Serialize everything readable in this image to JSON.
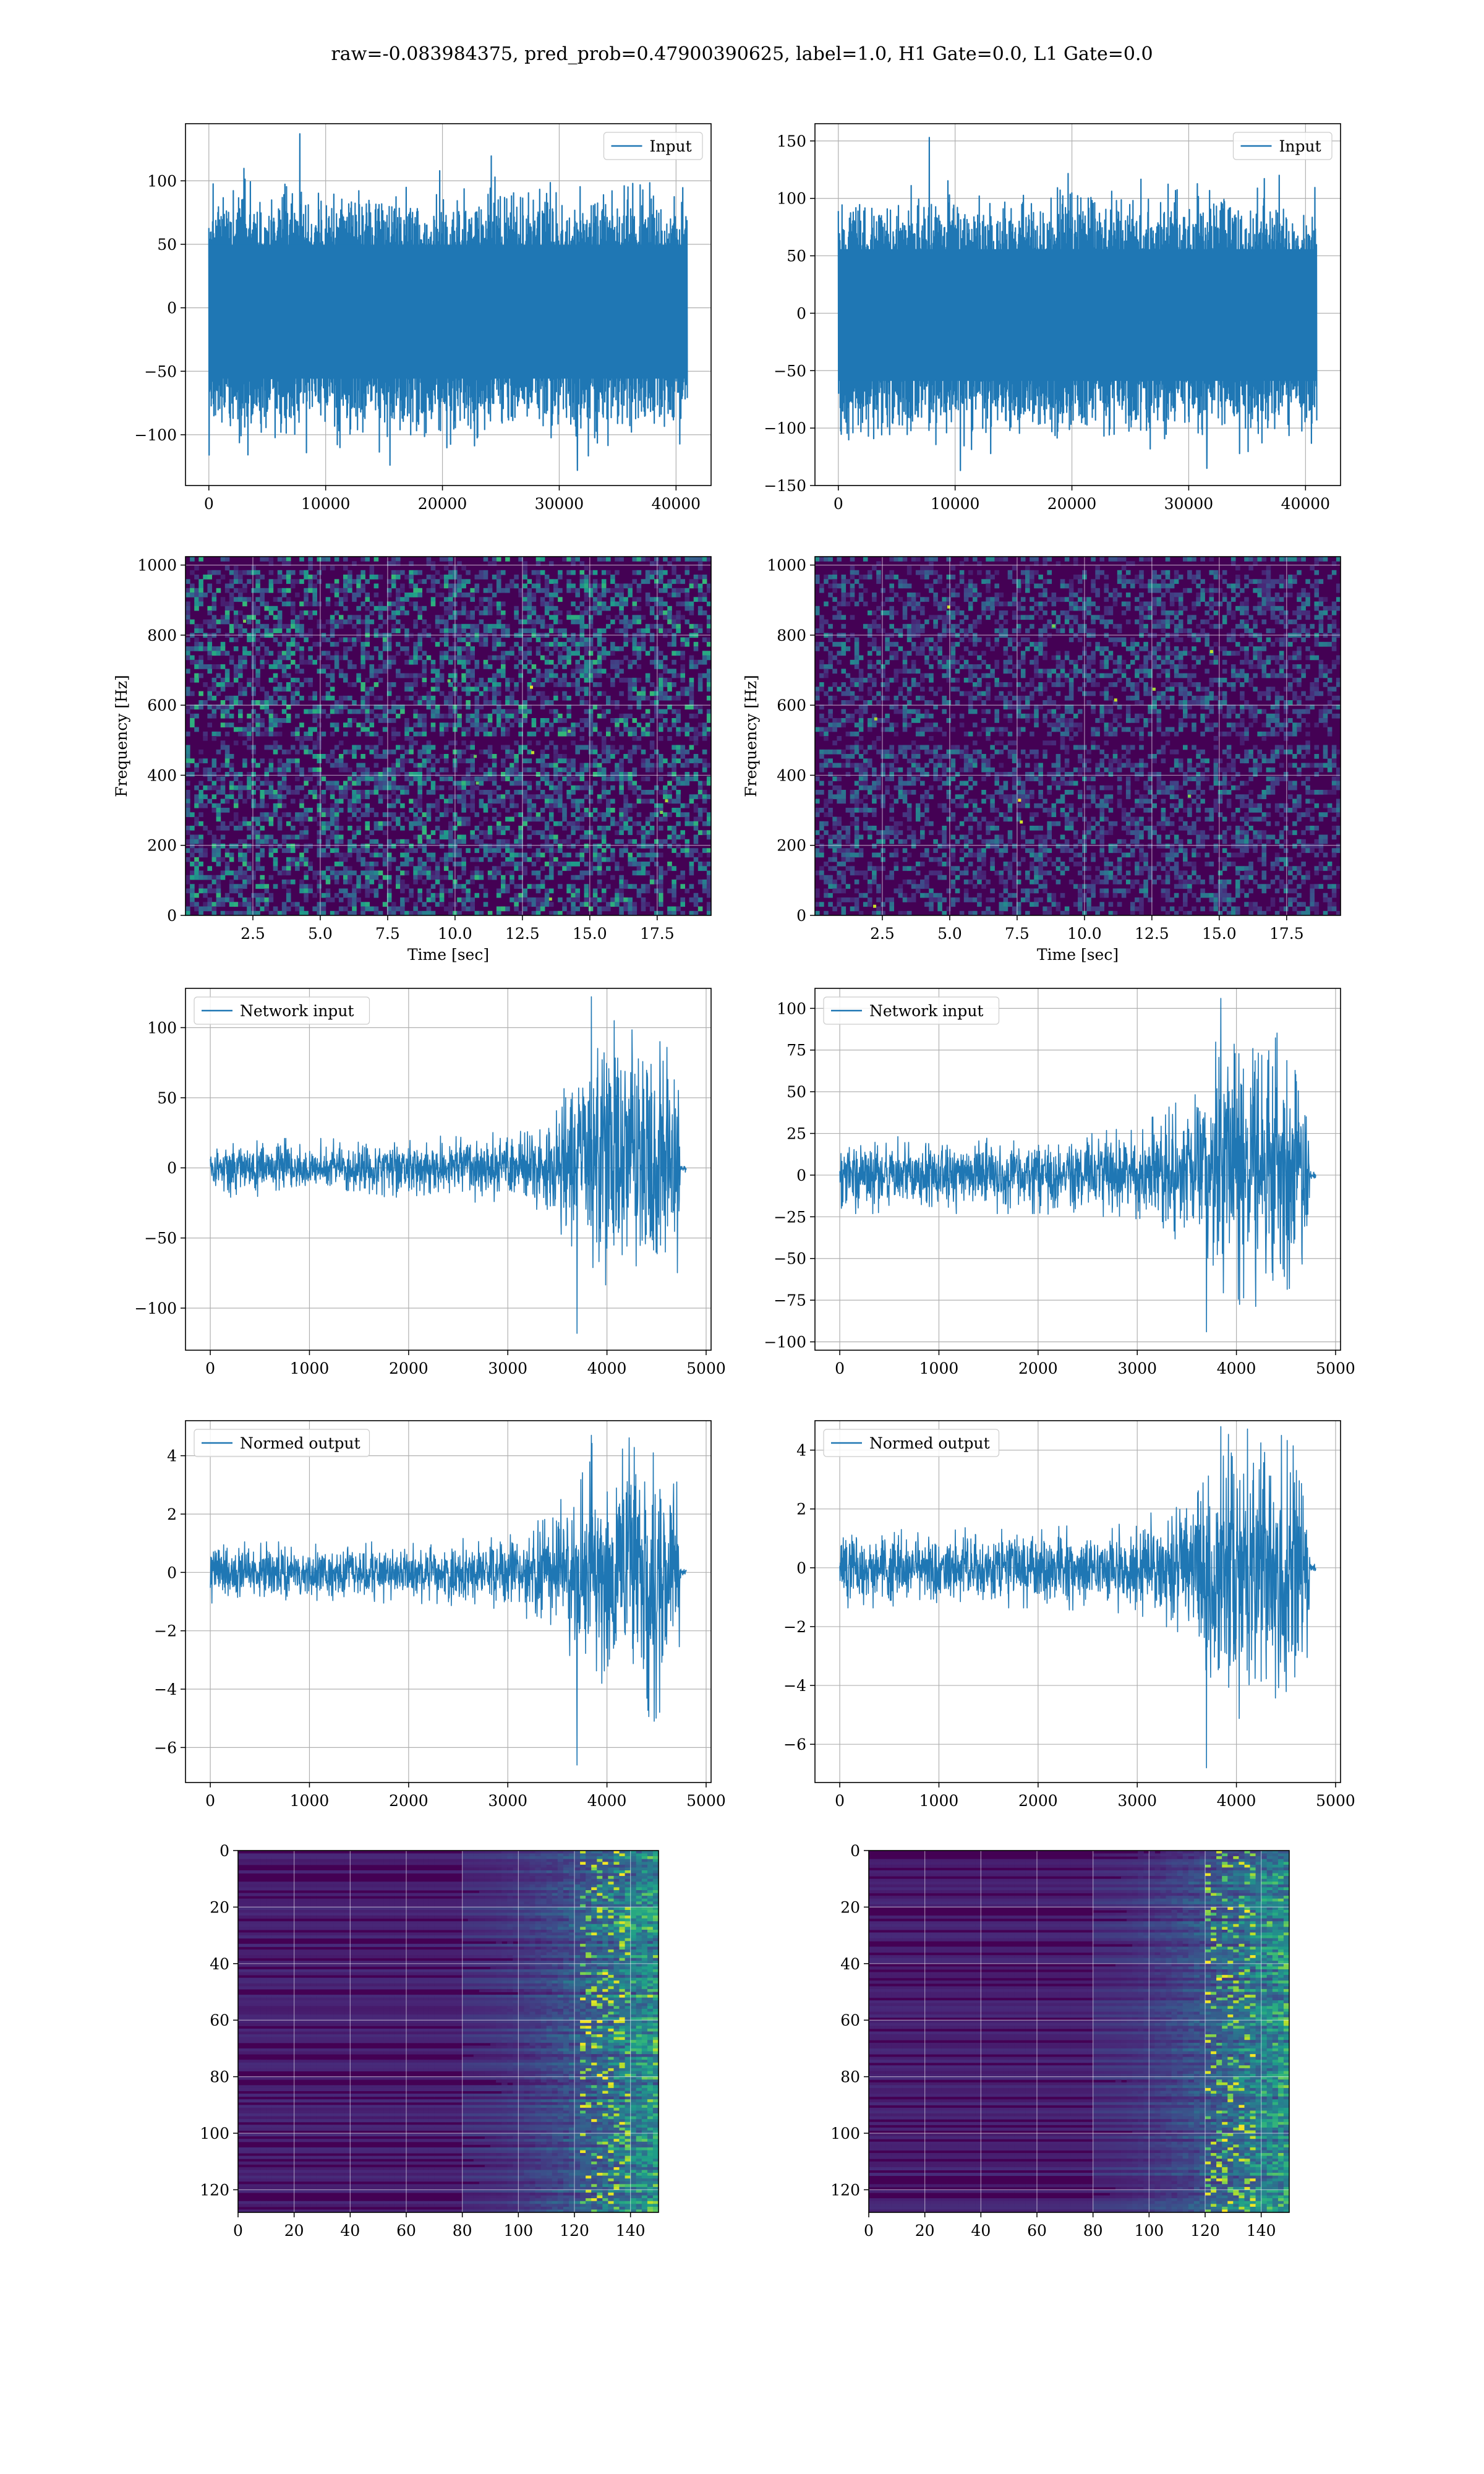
{
  "figure": {
    "suptitle": "raw=-0.083984375, pred_prob=0.47900390625, label=1.0, H1 Gate=0.0, L1 Gate=0.0"
  },
  "colors": {
    "line": "#1f77b4",
    "grid": "#b0b0b0",
    "viridis_dark": "#440154",
    "viridis_mid": "#21918c",
    "viridis_bright": "#fde725"
  },
  "chart_data": [
    {
      "id": "input-h1",
      "type": "line",
      "style": "dense-noise",
      "legend": "Input",
      "legend_loc": "top-right",
      "grid": true,
      "xlim": [
        -2000,
        43000
      ],
      "ylim": [
        -140,
        145
      ],
      "xticks": [
        0,
        10000,
        20000,
        30000,
        40000
      ],
      "yticks": [
        -100,
        -50,
        0,
        50,
        100
      ],
      "series": [
        {
          "name": "Input",
          "x_range": [
            0,
            40960
          ],
          "envelope": [
            [
              0,
              -90,
              80
            ],
            [
              40960,
              -90,
              80
            ]
          ],
          "extremes": [
            -128,
            137
          ]
        }
      ]
    },
    {
      "id": "input-l1",
      "type": "line",
      "style": "dense-noise",
      "legend": "Input",
      "legend_loc": "top-right",
      "grid": true,
      "xlim": [
        -2000,
        43000
      ],
      "ylim": [
        -150,
        165
      ],
      "xticks": [
        0,
        10000,
        20000,
        30000,
        40000
      ],
      "yticks": [
        -150,
        -100,
        -50,
        0,
        50,
        100,
        150
      ],
      "series": [
        {
          "name": "Input",
          "x_range": [
            0,
            40960
          ],
          "envelope": [
            [
              0,
              -95,
              90
            ],
            [
              40960,
              -95,
              90
            ]
          ],
          "extremes": [
            -135,
            153
          ]
        }
      ]
    },
    {
      "id": "spec-h1",
      "type": "heatmap",
      "style": "spectrogram",
      "xlabel": "Time [sec]",
      "ylabel": "Frequency [Hz]",
      "grid": true,
      "xlim": [
        0.0,
        19.5
      ],
      "ylim": [
        0,
        1024
      ],
      "xticks": [
        2.5,
        5.0,
        7.5,
        10.0,
        12.5,
        15.0,
        17.5
      ],
      "yticks": [
        0,
        200,
        400,
        600,
        800,
        1000
      ],
      "xtick_labels": [
        "2.5",
        "5.0",
        "7.5",
        "10.0",
        "12.5",
        "15.0",
        "17.5"
      ],
      "intensity": 0.42,
      "dark_bands_hz": [
        500,
        1000
      ]
    },
    {
      "id": "spec-l1",
      "type": "heatmap",
      "style": "spectrogram",
      "xlabel": "Time [sec]",
      "ylabel": "Frequency [Hz]",
      "grid": true,
      "xlim": [
        0.0,
        19.5
      ],
      "ylim": [
        0,
        1024
      ],
      "xticks": [
        2.5,
        5.0,
        7.5,
        10.0,
        12.5,
        15.0,
        17.5
      ],
      "yticks": [
        0,
        200,
        400,
        600,
        800,
        1000
      ],
      "xtick_labels": [
        "2.5",
        "5.0",
        "7.5",
        "10.0",
        "12.5",
        "15.0",
        "17.5"
      ],
      "intensity": 0.3,
      "dark_bands_hz": [
        500,
        1000
      ]
    },
    {
      "id": "network-h1",
      "type": "line",
      "style": "chirp",
      "legend": "Network input",
      "legend_loc": "top-left",
      "grid": true,
      "xlim": [
        -250,
        5050
      ],
      "ylim": [
        -130,
        128
      ],
      "xticks": [
        0,
        1000,
        2000,
        3000,
        4000,
        5000
      ],
      "yticks": [
        -100,
        -50,
        0,
        50,
        100
      ],
      "series": [
        {
          "name": "Network input",
          "x_range": [
            0,
            4800
          ],
          "envelope": [
            [
              0,
              -20,
              20
            ],
            [
              2000,
              -20,
              20
            ],
            [
              3000,
              -25,
              25
            ],
            [
              3500,
              -40,
              45
            ],
            [
              3800,
              -80,
              100
            ],
            [
              4100,
              -85,
              100
            ],
            [
              4450,
              -90,
              95
            ],
            [
              4730,
              -75,
              75
            ],
            [
              4740,
              -4,
              4
            ],
            [
              4800,
              -3,
              3
            ]
          ],
          "extremes": [
            -118,
            122
          ]
        }
      ]
    },
    {
      "id": "network-l1",
      "type": "line",
      "style": "chirp",
      "legend": "Network input",
      "legend_loc": "top-left",
      "grid": true,
      "xlim": [
        -250,
        5050
      ],
      "ylim": [
        -105,
        112
      ],
      "xticks": [
        0,
        1000,
        2000,
        3000,
        4000,
        5000
      ],
      "yticks": [
        -100,
        -75,
        -50,
        -25,
        0,
        25,
        50,
        75,
        100
      ],
      "series": [
        {
          "name": "Network input",
          "x_range": [
            0,
            4800
          ],
          "envelope": [
            [
              0,
              -22,
              22
            ],
            [
              2000,
              -22,
              22
            ],
            [
              3000,
              -25,
              28
            ],
            [
              3500,
              -40,
              45
            ],
            [
              3800,
              -70,
              85
            ],
            [
              4100,
              -75,
              90
            ],
            [
              4450,
              -75,
              80
            ],
            [
              4730,
              -60,
              60
            ],
            [
              4740,
              -4,
              4
            ],
            [
              4800,
              -3,
              3
            ]
          ],
          "extremes": [
            -94,
            106
          ]
        }
      ]
    },
    {
      "id": "normed-h1",
      "type": "line",
      "style": "chirp",
      "legend": "Normed output",
      "legend_loc": "top-left",
      "grid": true,
      "xlim": [
        -250,
        5050
      ],
      "ylim": [
        -7.2,
        5.2
      ],
      "xticks": [
        0,
        1000,
        2000,
        3000,
        4000,
        5000
      ],
      "yticks": [
        -6,
        -4,
        -2,
        0,
        2,
        4
      ],
      "series": [
        {
          "name": "Normed output",
          "x_range": [
            0,
            4800
          ],
          "envelope": [
            [
              0,
              -1,
              1
            ],
            [
              2000,
              -1,
              1
            ],
            [
              3000,
              -1.2,
              1.2
            ],
            [
              3500,
              -2,
              2.2
            ],
            [
              3800,
              -4,
              4.5
            ],
            [
              4100,
              -4.5,
              4.5
            ],
            [
              4450,
              -5,
              4.2
            ],
            [
              4730,
              -3.5,
              3.5
            ],
            [
              4740,
              -0.2,
              0.2
            ],
            [
              4800,
              -0.15,
              0.15
            ]
          ],
          "extremes": [
            -6.6,
            4.7
          ]
        }
      ]
    },
    {
      "id": "normed-l1",
      "type": "line",
      "style": "chirp",
      "legend": "Normed output",
      "legend_loc": "top-left",
      "grid": true,
      "xlim": [
        -250,
        5050
      ],
      "ylim": [
        -7.3,
        5.0
      ],
      "xticks": [
        0,
        1000,
        2000,
        3000,
        4000,
        5000
      ],
      "yticks": [
        -6,
        -4,
        -2,
        0,
        2,
        4
      ],
      "series": [
        {
          "name": "Normed output",
          "x_range": [
            0,
            4800
          ],
          "envelope": [
            [
              0,
              -1.3,
              1.3
            ],
            [
              2000,
              -1.3,
              1.3
            ],
            [
              3000,
              -1.5,
              1.5
            ],
            [
              3500,
              -2.2,
              2.5
            ],
            [
              3800,
              -4.5,
              4.2
            ],
            [
              4100,
              -5,
              4.5
            ],
            [
              4450,
              -5,
              4.3
            ],
            [
              4730,
              -3.5,
              3.5
            ],
            [
              4740,
              -0.2,
              0.2
            ],
            [
              4800,
              -0.15,
              0.15
            ]
          ],
          "extremes": [
            -6.8,
            4.8
          ]
        }
      ]
    },
    {
      "id": "features-h1",
      "type": "heatmap",
      "style": "feature-map",
      "grid": true,
      "xlim": [
        0,
        150
      ],
      "ylim": [
        128,
        0
      ],
      "y_inverted": true,
      "xticks": [
        0,
        20,
        40,
        60,
        80,
        100,
        120,
        140
      ],
      "yticks": [
        0,
        20,
        40,
        60,
        80,
        100,
        120
      ],
      "ramp_start_col": 80,
      "hot_col": 130
    },
    {
      "id": "features-l1",
      "type": "heatmap",
      "style": "feature-map",
      "grid": true,
      "xlim": [
        0,
        150
      ],
      "ylim": [
        128,
        0
      ],
      "y_inverted": true,
      "xticks": [
        0,
        20,
        40,
        60,
        80,
        100,
        120,
        140
      ],
      "yticks": [
        0,
        20,
        40,
        60,
        80,
        100,
        120
      ],
      "ramp_start_col": 80,
      "hot_col": 128
    }
  ]
}
